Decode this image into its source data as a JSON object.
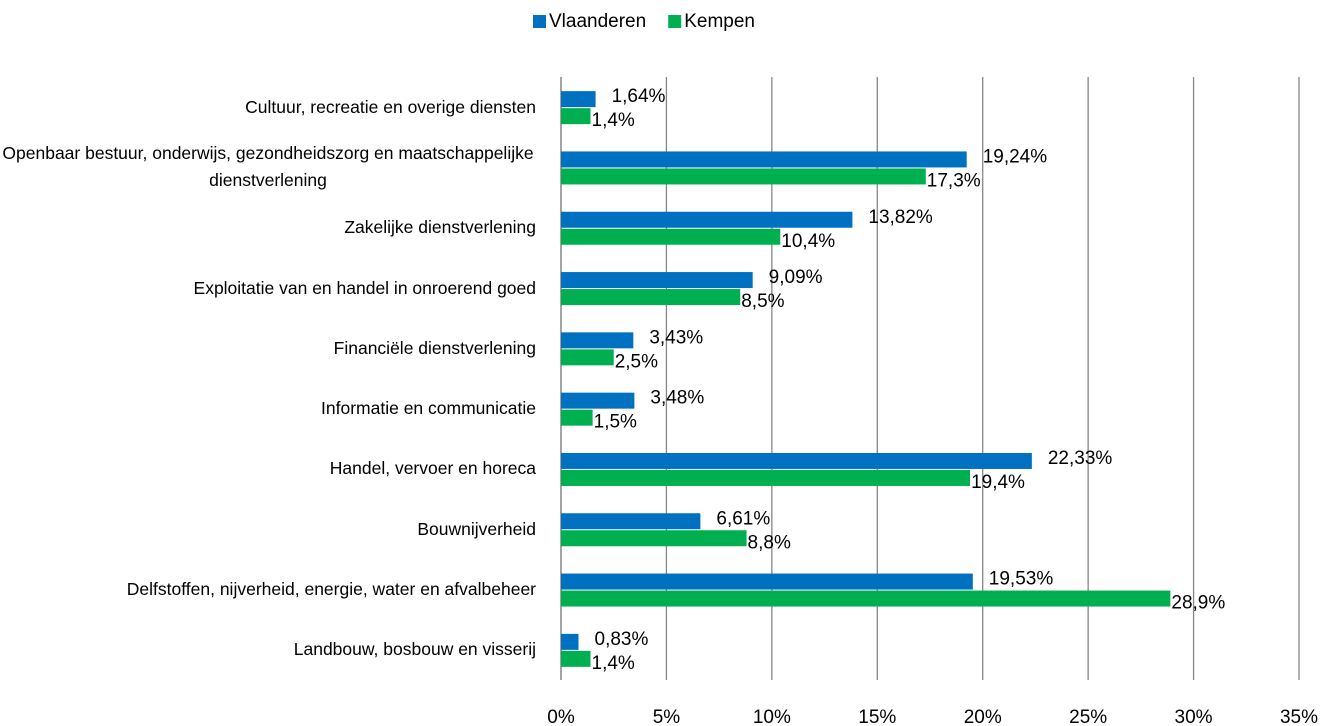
{
  "chart_data": {
    "type": "hbar",
    "categories": [
      "Cultuur, recreatie en overige diensten",
      "Openbaar bestuur, onderwijs, gezondheidszorg en maatschappelijke dienstverlening",
      "Zakelijke dienstverlening",
      "Exploitatie van en handel in onroerend goed",
      "Financiële dienstverlening",
      "Informatie en communicatie",
      "Handel, vervoer en horeca",
      "Bouwnijverheid",
      "Delfstoffen, nijverheid, energie, water en afvalbeheer",
      "Landbouw, bosbouw en visserij"
    ],
    "series": [
      {
        "name": "Vlaanderen",
        "color": "#0070c0",
        "values": [
          1.64,
          19.24,
          13.82,
          9.09,
          3.43,
          3.48,
          22.33,
          6.61,
          19.53,
          0.83
        ],
        "value_labels": [
          "1,64%",
          "19,24%",
          "13,82%",
          "9,09%",
          "3,43%",
          "3,48%",
          "22,33%",
          "6,61%",
          "19,53%",
          "0,83%"
        ]
      },
      {
        "name": "Kempen",
        "color": "#00b050",
        "values": [
          1.4,
          17.3,
          10.4,
          8.5,
          2.5,
          1.5,
          19.4,
          8.8,
          28.9,
          1.4
        ],
        "value_labels": [
          "1,4%",
          "17,3%",
          "10,4%",
          "8,5%",
          "2,5%",
          "1,5%",
          "19,4%",
          "8,8%",
          "28,9%",
          "1,4%"
        ]
      }
    ],
    "xlim": [
      0,
      35
    ],
    "xticks": [
      {
        "value": 0,
        "label": "0%"
      },
      {
        "value": 5,
        "label": "5%"
      },
      {
        "value": 10,
        "label": "10%"
      },
      {
        "value": 15,
        "label": "15%"
      },
      {
        "value": 20,
        "label": "20%"
      },
      {
        "value": 25,
        "label": "25%"
      },
      {
        "value": 30,
        "label": "30%"
      },
      {
        "value": 35,
        "label": "35%"
      }
    ],
    "grid": true,
    "legend": "top"
  }
}
